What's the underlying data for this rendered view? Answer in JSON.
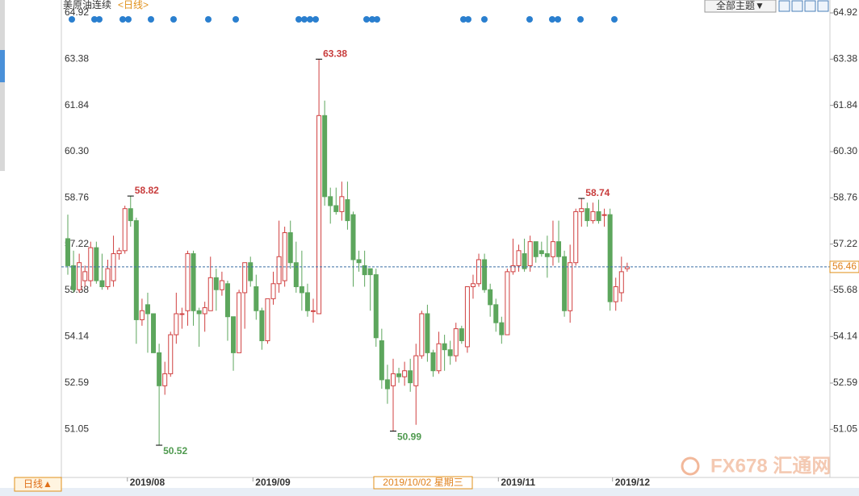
{
  "chart_data": {
    "type": "candlestick",
    "title": "美原油连续",
    "subtitle": "<日线>",
    "open": [
      57.4,
      56.5,
      55.7,
      56.0,
      56.0,
      57.1,
      56.0,
      55.8,
      56.0,
      56.9,
      57.0,
      58.4,
      58.0,
      54.7,
      55.2,
      54.9,
      53.6,
      52.5,
      52.9,
      54.2,
      54.9,
      55.0,
      56.9,
      55.0,
      54.9,
      55.0,
      56.1,
      55.7,
      55.9,
      54.8,
      53.6,
      55.6,
      56.6,
      55.8,
      55.0,
      54.0,
      55.4,
      55.9,
      56.0,
      57.6,
      56.6,
      55.8,
      55.6,
      55.0,
      54.9,
      61.5,
      58.8,
      58.5,
      58.3,
      58.7,
      58.2,
      56.7,
      56.5,
      56.4,
      56.2,
      54.0,
      52.7,
      52.5,
      52.9,
      52.8,
      53.0,
      52.5,
      53.5,
      54.9,
      53.6,
      53.0,
      53.9,
      53.7,
      53.5,
      54.4,
      53.8,
      55.8,
      55.9,
      56.7,
      55.7,
      55.2,
      54.6,
      54.2,
      56.3,
      56.5,
      56.9,
      56.5,
      57.3,
      57.0,
      56.9,
      56.8,
      57.3,
      56.8,
      55.0,
      56.6,
      58.3,
      58.4,
      58.0,
      58.3,
      58.2,
      58.2,
      55.3,
      55.6,
      56.4
    ],
    "high": [
      58.2,
      57.0,
      56.9,
      56.5,
      57.3,
      57.3,
      56.9,
      56.7,
      57.5,
      57.1,
      58.5,
      58.82,
      58.1,
      55.4,
      55.6,
      54.9,
      53.9,
      53.3,
      54.3,
      55.6,
      55.1,
      57.0,
      57.0,
      55.1,
      55.3,
      56.8,
      56.4,
      56.3,
      56.0,
      54.8,
      55.7,
      56.6,
      56.8,
      56.2,
      55.1,
      55.4,
      56.3,
      58.0,
      57.8,
      58.0,
      57.3,
      57.0,
      55.9,
      55.4,
      63.38,
      62.0,
      59.1,
      59.1,
      59.3,
      59.3,
      58.3,
      57.0,
      57.0,
      56.4,
      56.4,
      54.4,
      53.2,
      53.4,
      53.1,
      53.3,
      53.4,
      53.9,
      55.0,
      55.2,
      53.7,
      54.3,
      54.2,
      54.0,
      54.6,
      54.5,
      55.8,
      56.2,
      56.9,
      56.9,
      55.9,
      55.4,
      54.8,
      56.4,
      57.4,
      57.2,
      57.4,
      57.5,
      57.3,
      57.3,
      57.5,
      58.0,
      58.0,
      57.0,
      57.2,
      58.4,
      58.74,
      58.6,
      58.6,
      58.7,
      58.4,
      58.4,
      56.1,
      56.8,
      56.6
    ],
    "low": [
      56.2,
      55.6,
      55.6,
      55.8,
      55.8,
      55.9,
      55.7,
      55.7,
      55.8,
      56.7,
      56.9,
      57.8,
      53.9,
      54.5,
      53.6,
      53.6,
      50.52,
      52.2,
      52.8,
      53.9,
      54.4,
      54.5,
      54.5,
      53.8,
      54.3,
      55.0,
      55.0,
      55.5,
      54.0,
      53.0,
      53.6,
      54.4,
      55.8,
      54.7,
      53.7,
      53.9,
      55.2,
      55.6,
      55.8,
      56.4,
      55.6,
      55.0,
      54.8,
      54.6,
      54.9,
      58.5,
      57.9,
      58.2,
      58.0,
      57.7,
      55.8,
      56.3,
      55.8,
      55.0,
      53.8,
      52.4,
      51.9,
      50.99,
      52.6,
      52.5,
      52.3,
      51.2,
      53.4,
      53.3,
      52.8,
      52.9,
      53.0,
      53.2,
      53.3,
      53.9,
      53.6,
      55.4,
      55.8,
      55.6,
      54.8,
      54.3,
      53.9,
      54.2,
      56.2,
      56.3,
      56.3,
      56.3,
      56.6,
      56.8,
      56.1,
      56.5,
      56.6,
      54.8,
      54.6,
      56.5,
      57.8,
      57.8,
      57.9,
      57.9,
      57.8,
      55.0,
      55.0,
      55.3,
      56.3
    ],
    "close": [
      56.5,
      55.7,
      56.6,
      56.3,
      57.1,
      56.0,
      55.8,
      56.4,
      56.9,
      57.0,
      58.4,
      58.0,
      54.7,
      55.0,
      54.9,
      53.6,
      52.5,
      52.9,
      54.2,
      54.9,
      54.9,
      56.9,
      55.0,
      54.9,
      55.1,
      56.1,
      55.7,
      56.0,
      54.8,
      53.6,
      55.6,
      56.6,
      56.0,
      55.0,
      54.0,
      55.4,
      55.9,
      56.8,
      57.6,
      56.6,
      55.8,
      55.6,
      55.0,
      55.0,
      61.5,
      58.8,
      58.5,
      58.3,
      58.8,
      58.0,
      56.7,
      56.6,
      56.2,
      56.2,
      54.1,
      52.7,
      52.4,
      52.9,
      52.8,
      53.0,
      52.6,
      53.5,
      54.9,
      53.6,
      53.0,
      53.9,
      53.7,
      53.5,
      54.4,
      54.0,
      55.8,
      55.9,
      56.7,
      55.7,
      55.2,
      54.6,
      54.2,
      56.3,
      56.5,
      57.0,
      56.4,
      57.3,
      56.8,
      56.9,
      56.8,
      57.3,
      56.8,
      55.0,
      56.6,
      58.3,
      58.4,
      58.0,
      58.3,
      58.0,
      58.2,
      55.3,
      55.8,
      56.3,
      56.46
    ],
    "categories": [
      null,
      null,
      null,
      null,
      null,
      null,
      null,
      null,
      null,
      null,
      null,
      "2019/08",
      null,
      null,
      null,
      null,
      null,
      null,
      null,
      null,
      null,
      null,
      null,
      null,
      null,
      null,
      null,
      null,
      null,
      null,
      null,
      null,
      null,
      "2019/09",
      null,
      null,
      null,
      null,
      null,
      null,
      null,
      null,
      null,
      null,
      null,
      null,
      null,
      null,
      null,
      null,
      null,
      null,
      null,
      null,
      null,
      null,
      null,
      null,
      null,
      null,
      null,
      null,
      null,
      null,
      null,
      null,
      null,
      null,
      null,
      null,
      null,
      null,
      null,
      null,
      null,
      null,
      "2019/11",
      null,
      null,
      null,
      null,
      null,
      null,
      null,
      null,
      null,
      null,
      null,
      null,
      null,
      null,
      null,
      null,
      null,
      null,
      null,
      "2019/12",
      null,
      null
    ],
    "up_color": "#d04040",
    "down_color": "#5da65d",
    "ylim": [
      49.5,
      65.35
    ],
    "yticks": [
      64.92,
      63.38,
      61.84,
      {
        "value": 60.3,
        "label": "60.30"
      },
      58.76,
      57.22,
      55.68,
      54.14,
      52.59,
      51.05
    ],
    "annotations": [
      {
        "index": 11,
        "value": 58.82,
        "color": "#c83c3c"
      },
      {
        "index": 44,
        "value": 63.38,
        "color": "#c83c3c"
      },
      {
        "index": 90,
        "value": 58.74,
        "color": "#c83c3c"
      },
      {
        "index": 16,
        "value": 50.52,
        "color": "#4f9a4f"
      },
      {
        "index": 57,
        "value": 50.99,
        "color": "#4f9a4f"
      }
    ],
    "crosshair_label": "2019/10/02 星期三",
    "period_button": "日线▲",
    "theme_button": "全部主题▼",
    "watermark": "FX678 汇通网"
  }
}
